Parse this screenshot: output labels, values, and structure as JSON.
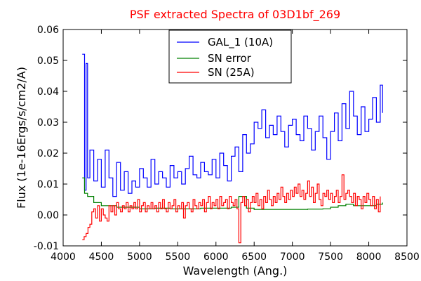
{
  "chart_data": {
    "type": "line",
    "title": "PSF extracted Spectra of 03D1bf_269",
    "title_color": "#ff0000",
    "xlabel": "Wavelength (Ang.)",
    "ylabel": "Flux (1e-16Ergs/s/cm2/A)",
    "xlim": [
      4000,
      8500
    ],
    "ylim": [
      -0.01,
      0.06
    ],
    "x_ticks": [
      4000,
      4500,
      5000,
      5500,
      6000,
      6500,
      7000,
      7500,
      8000,
      8500
    ],
    "x_tick_labels": [
      "4000",
      "4500",
      "5000",
      "5500",
      "6000",
      "6500",
      "7000",
      "7500",
      "8000",
      "8500"
    ],
    "y_ticks": [
      -0.01,
      0.0,
      0.01,
      0.02,
      0.03,
      0.04,
      0.05,
      0.06
    ],
    "y_tick_labels": [
      "-0.01",
      "0.00",
      "0.01",
      "0.02",
      "0.03",
      "0.04",
      "0.05",
      "0.06"
    ],
    "grid": false,
    "legend_position": "top-center",
    "series": [
      {
        "name": "GAL_1 (10A)",
        "color": "#0000ff",
        "style": "steps",
        "x": [
          4250,
          4280,
          4300,
          4320,
          4350,
          4400,
          4450,
          4500,
          4550,
          4600,
          4650,
          4700,
          4750,
          4800,
          4850,
          4900,
          4950,
          5000,
          5050,
          5100,
          5150,
          5200,
          5250,
          5300,
          5350,
          5400,
          5450,
          5500,
          5550,
          5600,
          5650,
          5700,
          5750,
          5800,
          5850,
          5900,
          5950,
          6000,
          6050,
          6100,
          6150,
          6200,
          6250,
          6300,
          6350,
          6400,
          6450,
          6500,
          6550,
          6600,
          6650,
          6700,
          6750,
          6800,
          6850,
          6900,
          6950,
          7000,
          7050,
          7100,
          7150,
          7200,
          7250,
          7300,
          7350,
          7400,
          7450,
          7500,
          7550,
          7600,
          7650,
          7700,
          7750,
          7800,
          7850,
          7900,
          7950,
          8000,
          8050,
          8100,
          8150,
          8180
        ],
        "y": [
          0.052,
          0.008,
          0.049,
          0.012,
          0.021,
          0.011,
          0.018,
          0.009,
          0.021,
          0.012,
          0.006,
          0.017,
          0.008,
          0.014,
          0.007,
          0.011,
          0.009,
          0.015,
          0.012,
          0.009,
          0.018,
          0.01,
          0.014,
          0.012,
          0.009,
          0.016,
          0.012,
          0.014,
          0.01,
          0.015,
          0.019,
          0.013,
          0.012,
          0.017,
          0.014,
          0.013,
          0.018,
          0.012,
          0.02,
          0.016,
          0.011,
          0.019,
          0.022,
          0.014,
          0.026,
          0.02,
          0.023,
          0.03,
          0.028,
          0.034,
          0.025,
          0.029,
          0.026,
          0.032,
          0.027,
          0.022,
          0.029,
          0.031,
          0.026,
          0.024,
          0.032,
          0.028,
          0.021,
          0.027,
          0.032,
          0.025,
          0.018,
          0.027,
          0.033,
          0.024,
          0.036,
          0.028,
          0.04,
          0.032,
          0.026,
          0.035,
          0.027,
          0.031,
          0.038,
          0.03,
          0.042,
          0.033
        ]
      },
      {
        "name": "SN error",
        "color": "#008000",
        "style": "steps",
        "x": [
          4250,
          4280,
          4320,
          4400,
          4500,
          4600,
          4700,
          4800,
          5000,
          5200,
          5400,
          5600,
          5800,
          6000,
          6200,
          6300,
          6400,
          6500,
          6600,
          6800,
          7000,
          7200,
          7400,
          7500,
          7600,
          7700,
          7800,
          7900,
          8000,
          8100,
          8180
        ],
        "y": [
          0.012,
          0.007,
          0.006,
          0.004,
          0.003,
          0.003,
          0.0025,
          0.0025,
          0.002,
          0.0022,
          0.002,
          0.002,
          0.0022,
          0.0022,
          0.0025,
          0.006,
          0.0022,
          0.0018,
          0.0018,
          0.0018,
          0.0018,
          0.0019,
          0.002,
          0.0025,
          0.003,
          0.0035,
          0.003,
          0.003,
          0.003,
          0.0035,
          0.004
        ]
      },
      {
        "name": "SN (25A)",
        "color": "#ff0000",
        "style": "steps",
        "x": [
          4250,
          4275,
          4300,
          4325,
          4350,
          4375,
          4400,
          4425,
          4450,
          4475,
          4500,
          4525,
          4550,
          4575,
          4600,
          4625,
          4650,
          4675,
          4700,
          4725,
          4750,
          4775,
          4800,
          4825,
          4850,
          4875,
          4900,
          4925,
          4950,
          4975,
          5000,
          5025,
          5050,
          5075,
          5100,
          5125,
          5150,
          5175,
          5200,
          5225,
          5250,
          5275,
          5300,
          5325,
          5350,
          5375,
          5400,
          5425,
          5450,
          5475,
          5500,
          5525,
          5550,
          5575,
          5600,
          5625,
          5650,
          5675,
          5700,
          5725,
          5750,
          5775,
          5800,
          5825,
          5850,
          5875,
          5900,
          5925,
          5950,
          5975,
          6000,
          6025,
          6050,
          6075,
          6100,
          6125,
          6150,
          6175,
          6200,
          6225,
          6250,
          6275,
          6300,
          6325,
          6350,
          6375,
          6400,
          6425,
          6450,
          6475,
          6500,
          6525,
          6550,
          6575,
          6600,
          6625,
          6650,
          6675,
          6700,
          6725,
          6750,
          6775,
          6800,
          6825,
          6850,
          6875,
          6900,
          6925,
          6950,
          6975,
          7000,
          7025,
          7050,
          7075,
          7100,
          7125,
          7150,
          7175,
          7200,
          7225,
          7250,
          7275,
          7300,
          7325,
          7350,
          7375,
          7400,
          7425,
          7450,
          7475,
          7500,
          7525,
          7550,
          7575,
          7600,
          7625,
          7650,
          7675,
          7700,
          7725,
          7750,
          7775,
          7800,
          7825,
          7850,
          7875,
          7900,
          7925,
          7950,
          7975,
          8000,
          8025,
          8050,
          8075,
          8100,
          8125,
          8150
        ],
        "y": [
          -0.008,
          -0.007,
          -0.006,
          -0.004,
          -0.003,
          0.001,
          0.002,
          -0.001,
          0.003,
          -0.002,
          0.002,
          0.0,
          -0.001,
          -0.002,
          0.003,
          0.001,
          0.003,
          0.0,
          0.004,
          0.002,
          0.001,
          0.003,
          0.002,
          0.004,
          0.001,
          0.003,
          0.002,
          0.004,
          0.002,
          0.005,
          0.001,
          0.003,
          0.004,
          0.001,
          0.003,
          0.002,
          0.004,
          0.002,
          0.003,
          0.001,
          0.004,
          0.002,
          0.005,
          0.002,
          0.001,
          0.004,
          0.002,
          0.003,
          0.005,
          0.001,
          0.003,
          0.002,
          0.004,
          -0.001,
          0.003,
          0.004,
          0.002,
          0.001,
          0.005,
          0.003,
          0.002,
          0.004,
          0.003,
          0.005,
          0.001,
          0.004,
          0.006,
          0.002,
          0.004,
          0.003,
          0.005,
          0.002,
          0.006,
          0.003,
          0.004,
          0.005,
          0.002,
          0.006,
          0.004,
          0.003,
          0.005,
          0.002,
          -0.009,
          0.004,
          0.006,
          0.003,
          0.005,
          0.001,
          0.004,
          0.006,
          0.004,
          0.007,
          0.003,
          0.005,
          0.002,
          0.006,
          0.004,
          0.008,
          0.005,
          0.003,
          0.006,
          0.004,
          0.007,
          0.005,
          0.009,
          0.006,
          0.004,
          0.007,
          0.005,
          0.008,
          0.006,
          0.009,
          0.007,
          0.01,
          0.006,
          0.008,
          0.005,
          0.007,
          0.011,
          0.006,
          0.009,
          0.004,
          0.007,
          0.01,
          0.005,
          0.003,
          0.007,
          0.006,
          0.008,
          0.005,
          0.007,
          0.004,
          0.006,
          0.008,
          0.004,
          0.006,
          0.013,
          0.005,
          0.007,
          0.008,
          0.006,
          0.004,
          0.007,
          0.003,
          0.006,
          0.005,
          0.002,
          0.006,
          0.004,
          0.007,
          0.005,
          0.003,
          0.006,
          0.002,
          0.005,
          0.001,
          0.006
        ]
      }
    ]
  }
}
